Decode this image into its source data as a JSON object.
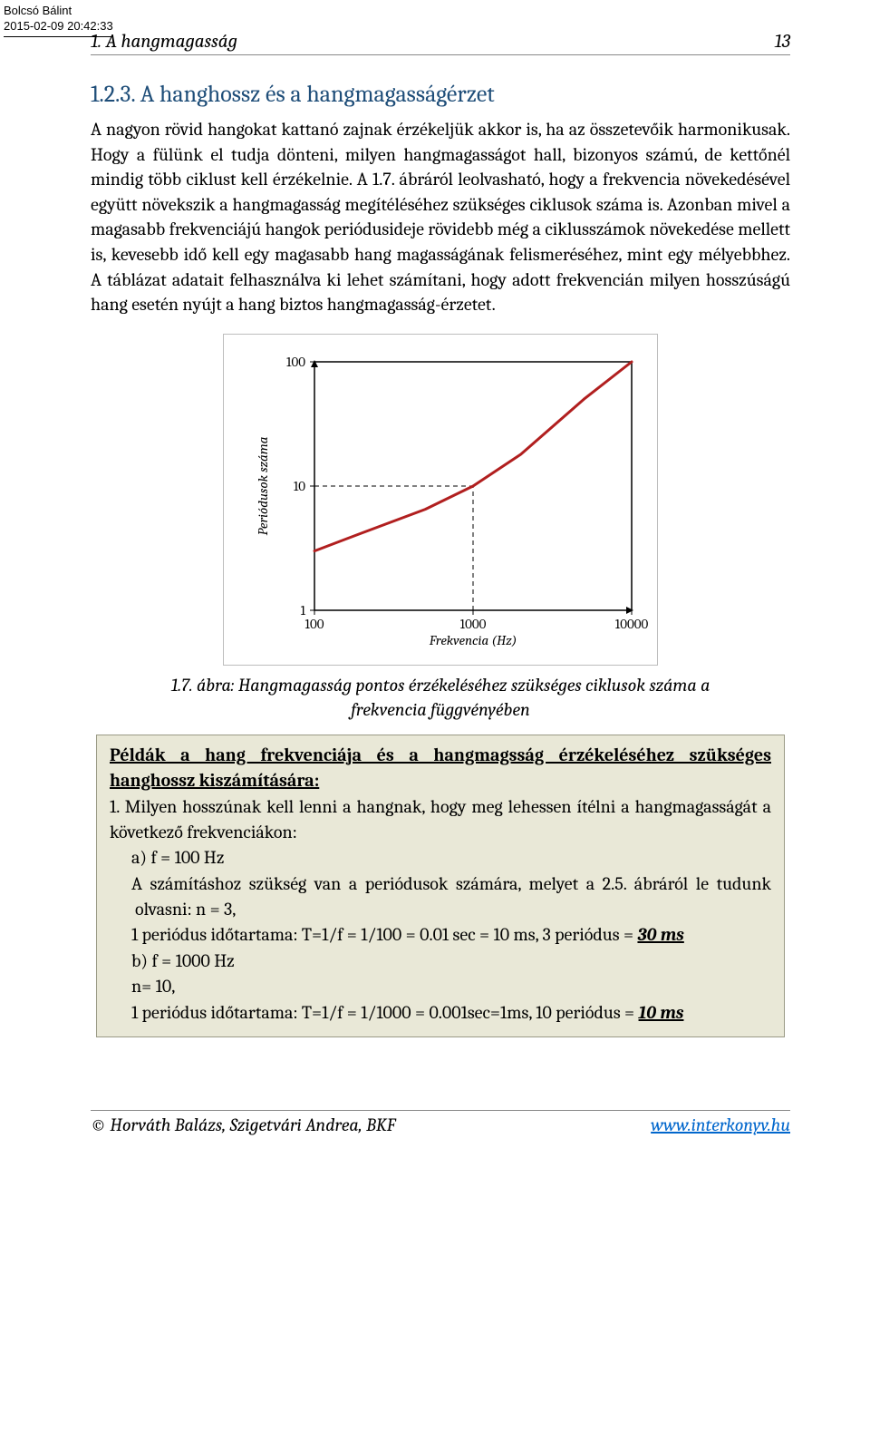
{
  "watermark": {
    "name": "Bolcsó Bálint",
    "timestamp": "2015-02-09 20:42:33"
  },
  "header": {
    "title": "1. A hangmagasság",
    "pageNumber": "13"
  },
  "section": {
    "number": "1.2.3.",
    "title": "A hanghossz és a hangmagasságérzet"
  },
  "paragraph": "A nagyon rövid hangokat kattanó zajnak érzékeljük akkor is, ha az összetevőik harmonikusak. Hogy a fülünk el tudja dönteni, milyen hangmagasságot hall, bizonyos számú, de kettőnél mindig több ciklust kell érzékelnie. A 1.7. ábráról leolvasható, hogy a frekvencia növekedésével együtt növekszik a hangmagasság megítéléséhez szükséges ciklusok száma is. Azonban mivel a magasabb frekvenciájú hangok periódusideje rövidebb még a ciklusszámok növekedése mellett is, kevesebb idő kell egy magasabb hang magasságának felismeréséhez, mint egy mélyebbhez. A táblázat adatait felhasználva ki lehet számítani, hogy adott frekvencián milyen hosszúságú hang esetén nyújt a hang biztos hangmagasság-érzetet.",
  "chart": {
    "type": "line-loglog",
    "ylabel": "Periódusok száma",
    "xlabel": "Frekvencia (Hz)",
    "x_ticks": [
      "100",
      "1000",
      "10000"
    ],
    "y_ticks": [
      "1",
      "10",
      "100"
    ],
    "axis_color": "#000000",
    "line_color": "#b11f1f",
    "line_width": 3,
    "grid_color": "#000000",
    "background": "#ffffff",
    "frame_color": "#bdbdbd",
    "ylabel_fontsize": 15,
    "xlabel_fontsize": 15,
    "tick_fontsize": 15,
    "data_points": [
      {
        "x": 100,
        "y": 3
      },
      {
        "x": 200,
        "y": 4.2
      },
      {
        "x": 500,
        "y": 6.5
      },
      {
        "x": 1000,
        "y": 10
      },
      {
        "x": 2000,
        "y": 18
      },
      {
        "x": 5000,
        "y": 50
      },
      {
        "x": 10000,
        "y": 100
      }
    ],
    "guide_points": [
      {
        "x": 100,
        "y": 3
      },
      {
        "x": 1000,
        "y": 10
      },
      {
        "x": 10000,
        "y": 100
      }
    ]
  },
  "caption": "1.7. ábra: Hangmagasság pontos érzékeléséhez szükséges ciklusok száma a frekvencia függvényében",
  "example": {
    "title": "Példák a hang frekvenciája és a hangmagsság érzékeléséhez szükséges hanghossz kiszámítására:",
    "intro": "1. Milyen hosszúnak kell lenni a hangnak, hogy meg lehessen ítélni a hangmagasságát a következő frekvenciákon:",
    "a_label": "a) f = 100 Hz",
    "a_line1": "A számításhoz szükség van a periódusok számára, melyet a 2.5. ábráról le tudunk olvasni: n = 3,",
    "a_line2": "1 periódus időtartama: T=1/f = 1/100 = 0.01 sec = 10 ms, 3 periódus = ",
    "a_result": "30 ms",
    "b_label": "b) f = 1000 Hz",
    "b_line1": "n= 10,",
    "b_line2": "1 periódus időtartama: T=1/f = 1/1000 = 0.001sec=1ms, 10 periódus = ",
    "b_result": "10 ms"
  },
  "footer": {
    "credit": "© Horváth Balázs, Szigetvári Andrea, BKF",
    "link": "www.interkonyv.hu"
  }
}
